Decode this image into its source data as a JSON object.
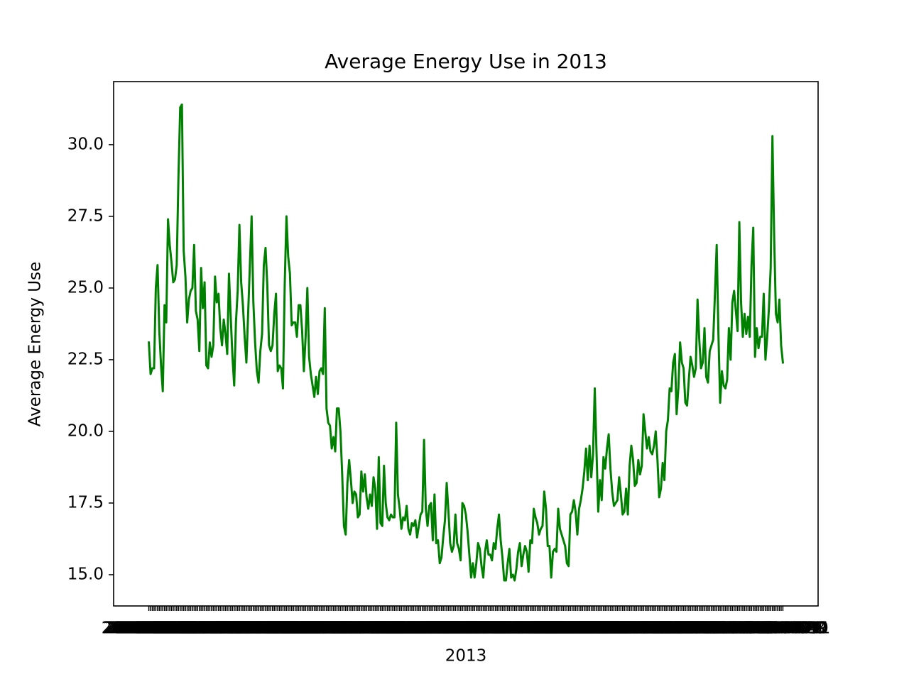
{
  "chart_data": {
    "type": "line",
    "title": "Average Energy Use in 2013",
    "x_label": "2013",
    "y_label": "Average Energy Use",
    "color": "#008000",
    "ylim": [
      13.91,
      32.2
    ],
    "yticks": [
      {
        "value": 15,
        "label": "15.0"
      },
      17.5,
      {
        "value": 20,
        "label": "20.0"
      },
      22.5,
      {
        "value": 25,
        "label": "25.0"
      },
      27.5,
      {
        "value": 30,
        "label": "30.0"
      }
    ],
    "categories": [
      "2013-01-01",
      "2013-01-02",
      "2013-01-03",
      "2013-01-04",
      "2013-01-05",
      "2013-01-06",
      "2013-01-07",
      "2013-01-08",
      "2013-01-09",
      "2013-01-10",
      "2013-01-11",
      "2013-01-12",
      "2013-01-13",
      "2013-01-14",
      "2013-01-15",
      "2013-01-16",
      "2013-01-17",
      "2013-01-18",
      "2013-01-19",
      "2013-01-20",
      "2013-01-21",
      "2013-01-22",
      "2013-01-23",
      "2013-01-24",
      "2013-01-25",
      "2013-01-26",
      "2013-01-27",
      "2013-01-28",
      "2013-01-29",
      "2013-01-30",
      "2013-01-31",
      "2013-02-01",
      "2013-02-02",
      "2013-02-03",
      "2013-02-04",
      "2013-02-05",
      "2013-02-06",
      "2013-02-07",
      "2013-02-08",
      "2013-02-09",
      "2013-02-10",
      "2013-02-11",
      "2013-02-12",
      "2013-02-13",
      "2013-02-14",
      "2013-02-15",
      "2013-02-16",
      "2013-02-17",
      "2013-02-18",
      "2013-02-19",
      "2013-02-20",
      "2013-02-21",
      "2013-02-22",
      "2013-02-23",
      "2013-02-24",
      "2013-02-25",
      "2013-02-26",
      "2013-02-27",
      "2013-02-28",
      "2013-03-01",
      "2013-03-02",
      "2013-03-03",
      "2013-03-04",
      "2013-03-05",
      "2013-03-06",
      "2013-03-07",
      "2013-03-08",
      "2013-03-09",
      "2013-03-10",
      "2013-03-11",
      "2013-03-12",
      "2013-03-13",
      "2013-03-14",
      "2013-03-15",
      "2013-03-16",
      "2013-03-17",
      "2013-03-18",
      "2013-03-19",
      "2013-03-20",
      "2013-03-21",
      "2013-03-22",
      "2013-03-23",
      "2013-03-24",
      "2013-03-25",
      "2013-03-26",
      "2013-03-27",
      "2013-03-28",
      "2013-03-29",
      "2013-03-30",
      "2013-03-31",
      "2013-04-01",
      "2013-04-02",
      "2013-04-03",
      "2013-04-04",
      "2013-04-05",
      "2013-04-06",
      "2013-04-07",
      "2013-04-08",
      "2013-04-09",
      "2013-04-10",
      "2013-04-11",
      "2013-04-12",
      "2013-04-13",
      "2013-04-14",
      "2013-04-15",
      "2013-04-16",
      "2013-04-17",
      "2013-04-18",
      "2013-04-19",
      "2013-04-20",
      "2013-04-21",
      "2013-04-22",
      "2013-04-23",
      "2013-04-24",
      "2013-04-25",
      "2013-04-26",
      "2013-04-27",
      "2013-04-28",
      "2013-04-29",
      "2013-04-30",
      "2013-05-01",
      "2013-05-02",
      "2013-05-03",
      "2013-05-04",
      "2013-05-05",
      "2013-05-06",
      "2013-05-07",
      "2013-05-08",
      "2013-05-09",
      "2013-05-10",
      "2013-05-11",
      "2013-05-12",
      "2013-05-13",
      "2013-05-14",
      "2013-05-15",
      "2013-05-16",
      "2013-05-17",
      "2013-05-18",
      "2013-05-19",
      "2013-05-20",
      "2013-05-21",
      "2013-05-22",
      "2013-05-23",
      "2013-05-24",
      "2013-05-25",
      "2013-05-26",
      "2013-05-27",
      "2013-05-28",
      "2013-05-29",
      "2013-05-30",
      "2013-05-31",
      "2013-06-01",
      "2013-06-02",
      "2013-06-03",
      "2013-06-04",
      "2013-06-05",
      "2013-06-06",
      "2013-06-07",
      "2013-06-08",
      "2013-06-09",
      "2013-06-10",
      "2013-06-11",
      "2013-06-12",
      "2013-06-13",
      "2013-06-14",
      "2013-06-15",
      "2013-06-16",
      "2013-06-17",
      "2013-06-18",
      "2013-06-19",
      "2013-06-20",
      "2013-06-21",
      "2013-06-22",
      "2013-06-23",
      "2013-06-24",
      "2013-06-25",
      "2013-06-26",
      "2013-06-27",
      "2013-06-28",
      "2013-06-29",
      "2013-06-30",
      "2013-07-01",
      "2013-07-02",
      "2013-07-03",
      "2013-07-04",
      "2013-07-05",
      "2013-07-06",
      "2013-07-07",
      "2013-07-08",
      "2013-07-09",
      "2013-07-10",
      "2013-07-11",
      "2013-07-12",
      "2013-07-13",
      "2013-07-14",
      "2013-07-15",
      "2013-07-16",
      "2013-07-17",
      "2013-07-18",
      "2013-07-19",
      "2013-07-20",
      "2013-07-21",
      "2013-07-22",
      "2013-07-23",
      "2013-07-24",
      "2013-07-25",
      "2013-07-26",
      "2013-07-27",
      "2013-07-28",
      "2013-07-29",
      "2013-07-30",
      "2013-07-31",
      "2013-08-01",
      "2013-08-02",
      "2013-08-03",
      "2013-08-04",
      "2013-08-05",
      "2013-08-06",
      "2013-08-07",
      "2013-08-08",
      "2013-08-09",
      "2013-08-10",
      "2013-08-11",
      "2013-08-12",
      "2013-08-13",
      "2013-08-14",
      "2013-08-15",
      "2013-08-16",
      "2013-08-17",
      "2013-08-18",
      "2013-08-19",
      "2013-08-20",
      "2013-08-21",
      "2013-08-22",
      "2013-08-23",
      "2013-08-24",
      "2013-08-25",
      "2013-08-26",
      "2013-08-27",
      "2013-08-28",
      "2013-08-29",
      "2013-08-30",
      "2013-08-31",
      "2013-09-01",
      "2013-09-02",
      "2013-09-03",
      "2013-09-04",
      "2013-09-05",
      "2013-09-06",
      "2013-09-07",
      "2013-09-08",
      "2013-09-09",
      "2013-09-10",
      "2013-09-11",
      "2013-09-12",
      "2013-09-13",
      "2013-09-14",
      "2013-09-15",
      "2013-09-16",
      "2013-09-17",
      "2013-09-18",
      "2013-09-19",
      "2013-09-20",
      "2013-09-21",
      "2013-09-22",
      "2013-09-23",
      "2013-09-24",
      "2013-09-25",
      "2013-09-26",
      "2013-09-27",
      "2013-09-28",
      "2013-09-29",
      "2013-09-30",
      "2013-10-01",
      "2013-10-02",
      "2013-10-03",
      "2013-10-04",
      "2013-10-05",
      "2013-10-06",
      "2013-10-07",
      "2013-10-08",
      "2013-10-09",
      "2013-10-10",
      "2013-10-11",
      "2013-10-12",
      "2013-10-13",
      "2013-10-14",
      "2013-10-15",
      "2013-10-16",
      "2013-10-17",
      "2013-10-18",
      "2013-10-19",
      "2013-10-20",
      "2013-10-21",
      "2013-10-22",
      "2013-10-23",
      "2013-10-24",
      "2013-10-25",
      "2013-10-26",
      "2013-10-27",
      "2013-10-28",
      "2013-10-29",
      "2013-10-30",
      "2013-10-31",
      "2013-11-01",
      "2013-11-02",
      "2013-11-03",
      "2013-11-04",
      "2013-11-05",
      "2013-11-06",
      "2013-11-07",
      "2013-11-08",
      "2013-11-09",
      "2013-11-10",
      "2013-11-11",
      "2013-11-12",
      "2013-11-13",
      "2013-11-14",
      "2013-11-15",
      "2013-11-16",
      "2013-11-17",
      "2013-11-18",
      "2013-11-19",
      "2013-11-20",
      "2013-11-21",
      "2013-11-22",
      "2013-11-23",
      "2013-11-24",
      "2013-11-25",
      "2013-11-26",
      "2013-11-27",
      "2013-11-28",
      "2013-11-29",
      "2013-11-30",
      "2013-12-01",
      "2013-12-02",
      "2013-12-03",
      "2013-12-04",
      "2013-12-05",
      "2013-12-06",
      "2013-12-07",
      "2013-12-08",
      "2013-12-09",
      "2013-12-10",
      "2013-12-11",
      "2013-12-12",
      "2013-12-13",
      "2013-12-14",
      "2013-12-15",
      "2013-12-16",
      "2013-12-17",
      "2013-12-18",
      "2013-12-19",
      "2013-12-20",
      "2013-12-21",
      "2013-12-22",
      "2013-12-23",
      "2013-12-24",
      "2013-12-25",
      "2013-12-26",
      "2013-12-27",
      "2013-12-28",
      "2013-12-29",
      "2013-12-30",
      "2013-12-31"
    ],
    "values": [
      23.1,
      22.0,
      22.2,
      22.2,
      25.0,
      25.8,
      23.5,
      22.3,
      21.4,
      24.4,
      23.8,
      27.4,
      26.5,
      25.9,
      25.2,
      25.3,
      25.8,
      28.9,
      31.3,
      31.4,
      26.3,
      25.4,
      23.8,
      24.6,
      24.9,
      25.0,
      26.5,
      24.2,
      23.9,
      22.8,
      25.7,
      24.3,
      25.2,
      22.3,
      22.2,
      23.1,
      22.6,
      23.0,
      25.4,
      24.5,
      24.8,
      23.6,
      23.0,
      23.9,
      23.4,
      22.7,
      25.5,
      24.0,
      22.6,
      21.6,
      23.8,
      24.9,
      27.2,
      25.2,
      24.4,
      23.3,
      22.4,
      24.1,
      25.8,
      27.5,
      24.5,
      23.1,
      22.1,
      21.7,
      22.8,
      23.4,
      25.8,
      26.4,
      25.1,
      23.0,
      22.8,
      23.0,
      24.1,
      24.8,
      22.1,
      22.3,
      22.2,
      21.5,
      25.1,
      27.5,
      26.1,
      25.5,
      23.7,
      23.8,
      23.8,
      23.3,
      24.4,
      24.4,
      23.5,
      22.1,
      23.3,
      25.0,
      22.6,
      22.0,
      21.6,
      21.2,
      21.9,
      21.3,
      22.1,
      22.2,
      22.0,
      24.3,
      20.8,
      20.3,
      20.2,
      19.4,
      19.8,
      19.3,
      20.8,
      20.8,
      20.0,
      18.5,
      16.7,
      16.4,
      18.2,
      19.0,
      18.3,
      17.5,
      17.9,
      17.8,
      17.0,
      17.1,
      18.6,
      17.9,
      18.5,
      17.7,
      17.3,
      17.8,
      17.4,
      18.4,
      18.0,
      16.6,
      19.1,
      16.8,
      16.7,
      18.8,
      17.5,
      17.0,
      16.9,
      17.1,
      17.0,
      17.0,
      20.3,
      17.8,
      17.3,
      16.6,
      17.0,
      16.9,
      17.4,
      16.6,
      16.4,
      16.8,
      16.7,
      16.9,
      16.3,
      16.7,
      17.1,
      17.2,
      19.7,
      17.3,
      16.7,
      17.4,
      17.5,
      16.2,
      17.8,
      16.1,
      16.2,
      15.4,
      15.6,
      16.3,
      16.9,
      18.2,
      17.2,
      16.1,
      15.8,
      16.0,
      17.1,
      16.1,
      15.9,
      15.5,
      17.5,
      17.4,
      17.1,
      16.5,
      15.7,
      14.9,
      15.4,
      14.9,
      15.4,
      16.1,
      15.9,
      15.3,
      14.9,
      15.8,
      16.2,
      15.7,
      15.7,
      15.5,
      16.1,
      15.9,
      16.6,
      17.1,
      16.2,
      15.6,
      14.8,
      14.8,
      15.4,
      15.9,
      14.9,
      15.0,
      14.8,
      15.2,
      15.8,
      16.1,
      15.3,
      15.7,
      16.0,
      15.8,
      15.1,
      16.2,
      16.1,
      17.3,
      17.0,
      16.8,
      16.4,
      16.6,
      16.7,
      17.9,
      17.3,
      16.0,
      16.0,
      14.9,
      15.8,
      15.9,
      15.8,
      17.3,
      16.6,
      16.4,
      16.2,
      16.0,
      15.4,
      15.3,
      17.1,
      17.2,
      17.6,
      17.2,
      16.4,
      17.3,
      17.6,
      18.0,
      18.6,
      19.4,
      18.3,
      19.5,
      18.4,
      19.2,
      21.5,
      19.3,
      17.2,
      18.3,
      17.6,
      19.1,
      18.7,
      19.4,
      19.9,
      18.7,
      17.9,
      17.4,
      17.5,
      17.6,
      18.4,
      17.8,
      17.1,
      17.2,
      18.0,
      17.1,
      18.8,
      19.5,
      19.0,
      18.1,
      18.2,
      19.0,
      18.5,
      18.8,
      20.6,
      20.0,
      19.4,
      19.8,
      19.3,
      19.2,
      19.5,
      20.0,
      19.0,
      17.7,
      18.0,
      18.9,
      18.3,
      20.0,
      20.4,
      21.5,
      21.4,
      22.4,
      22.7,
      20.6,
      21.5,
      23.1,
      22.4,
      22.2,
      21.0,
      20.9,
      21.8,
      22.6,
      22.3,
      21.9,
      22.2,
      24.6,
      23.2,
      22.2,
      22.4,
      23.6,
      21.9,
      21.7,
      22.8,
      23.0,
      23.2,
      24.8,
      26.5,
      23.4,
      21.0,
      22.1,
      21.6,
      21.5,
      21.8,
      23.6,
      22.5,
      24.5,
      24.9,
      24.2,
      23.5,
      27.3,
      24.5,
      23.3,
      24.1,
      23.4,
      24.0,
      23.3,
      25.8,
      27.1,
      22.6,
      23.6,
      22.9,
      23.3,
      23.3,
      24.8,
      22.5,
      23.3,
      24.3,
      25.7,
      30.3,
      26.8,
      24.1,
      23.8,
      24.6,
      23.0,
      22.4
    ]
  }
}
